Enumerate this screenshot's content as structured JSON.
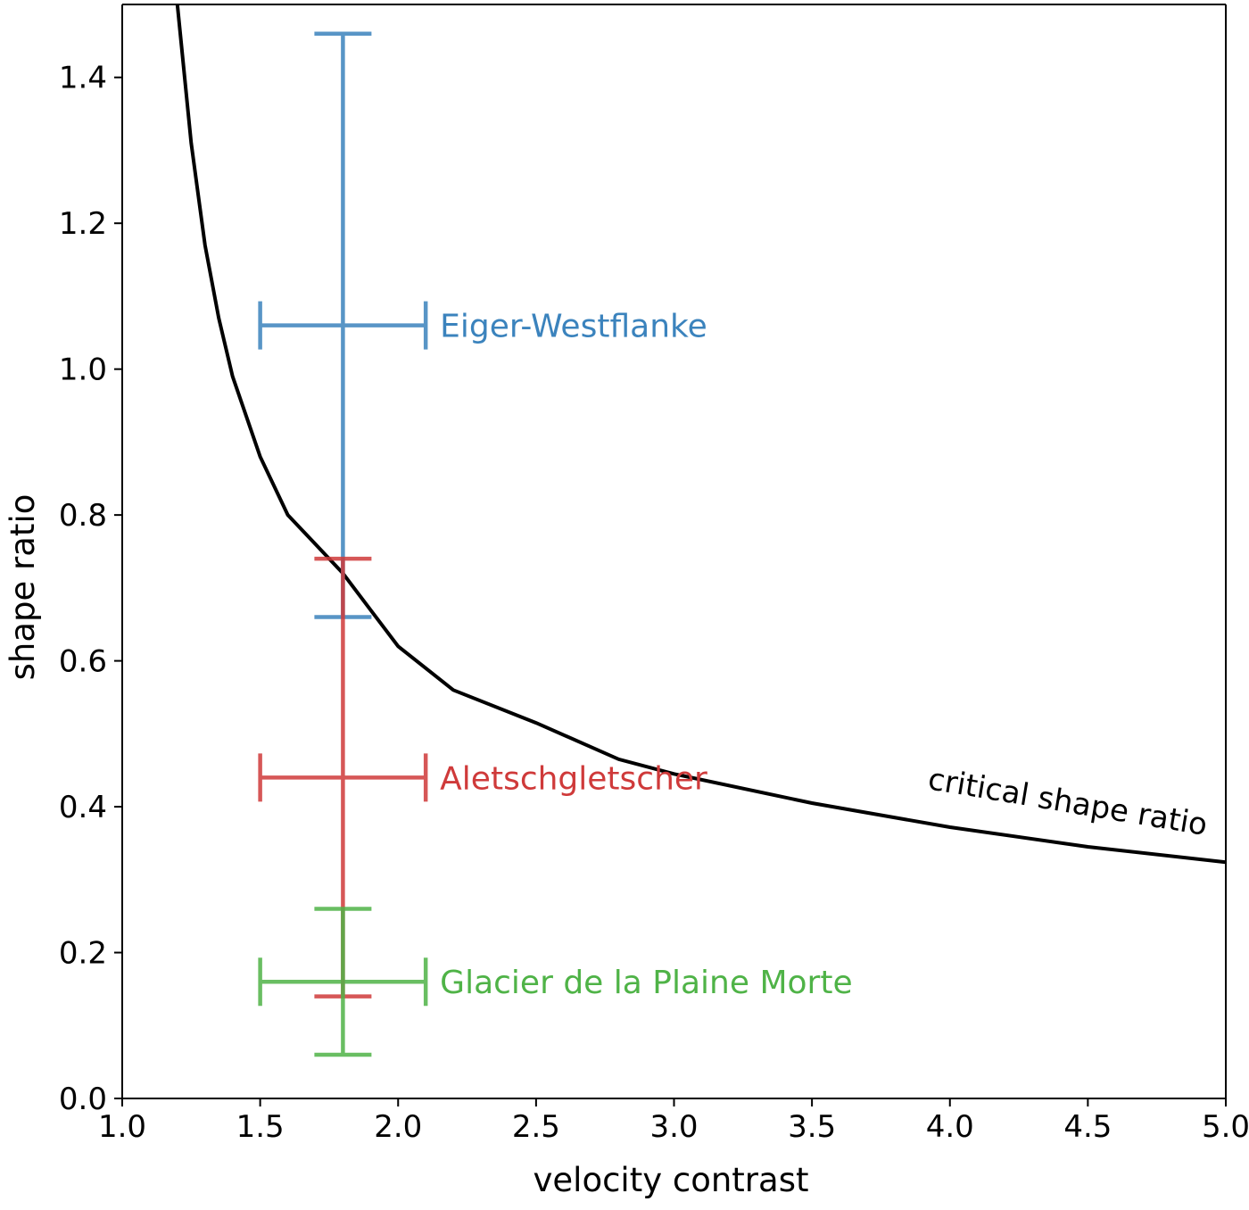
{
  "chart_data": {
    "type": "scatter",
    "title": "",
    "xlabel": "velocity contrast",
    "ylabel": "shape ratio",
    "xlim": [
      1.0,
      5.0
    ],
    "ylim": [
      0.0,
      1.5
    ],
    "xticks": [
      "1.0",
      "1.5",
      "2.0",
      "2.5",
      "3.0",
      "3.5",
      "4.0",
      "4.5",
      "5.0"
    ],
    "yticks": [
      "0.0",
      "0.2",
      "0.4",
      "0.6",
      "0.8",
      "1.0",
      "1.2",
      "1.4"
    ],
    "grid": false,
    "series": [
      {
        "name": "Eiger-Westflanke",
        "color": "#3b83bd",
        "x": 1.8,
        "y": 1.06,
        "x_err": [
          1.5,
          2.1
        ],
        "y_err": [
          0.66,
          1.46
        ]
      },
      {
        "name": "Aletschgletscher",
        "color": "#cf3a3a",
        "x": 1.8,
        "y": 0.44,
        "x_err": [
          1.5,
          2.1
        ],
        "y_err": [
          0.14,
          0.74
        ]
      },
      {
        "name": "Glacier de la Plaine Morte",
        "color": "#4fb347",
        "x": 1.8,
        "y": 0.16,
        "x_err": [
          1.5,
          2.1
        ],
        "y_err": [
          0.06,
          0.26
        ]
      }
    ],
    "curve": {
      "name": "critical shape ratio",
      "color": "#000000",
      "x": [
        1.2,
        1.25,
        1.3,
        1.35,
        1.4,
        1.5,
        1.6,
        1.7,
        1.8,
        1.9,
        2.0,
        2.2,
        2.5,
        2.8,
        3.0,
        3.5,
        4.0,
        4.5,
        5.0
      ],
      "y": [
        1.5,
        1.31,
        1.17,
        1.07,
        0.99,
        0.88,
        0.8,
        0.76,
        0.72,
        0.67,
        0.62,
        0.56,
        0.515,
        0.465,
        0.445,
        0.405,
        0.372,
        0.345,
        0.324
      ]
    }
  }
}
